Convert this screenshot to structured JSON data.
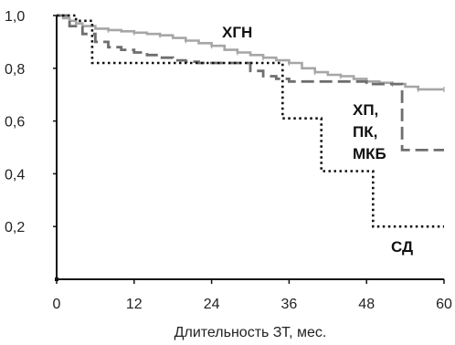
{
  "chart_data": {
    "type": "line",
    "title": "",
    "xlabel": "Длительность ЗТ, мес.",
    "ylabel": "",
    "xlim": [
      0,
      60
    ],
    "ylim": [
      0,
      1
    ],
    "xticks": [
      "0",
      "12",
      "24",
      "36",
      "48",
      "60"
    ],
    "yticks": [
      "0,2",
      "0,4",
      "0,6",
      "0,8",
      "1,0"
    ],
    "grid": false,
    "step": true,
    "series": [
      {
        "name": "ХГН",
        "label_lines": [
          "ХГН"
        ],
        "color": "#a6a6a6",
        "dash": "solid",
        "x": [
          0,
          1,
          2,
          3,
          4,
          6,
          8,
          10,
          12,
          14,
          16,
          18,
          20,
          22,
          24,
          26,
          28,
          30,
          32,
          34,
          36,
          38,
          40,
          42,
          44,
          46,
          48,
          50,
          52,
          54,
          56,
          58,
          60
        ],
        "y": [
          1.0,
          0.99,
          0.98,
          0.97,
          0.96,
          0.95,
          0.945,
          0.94,
          0.935,
          0.93,
          0.925,
          0.915,
          0.905,
          0.895,
          0.885,
          0.87,
          0.86,
          0.85,
          0.84,
          0.83,
          0.82,
          0.8,
          0.785,
          0.775,
          0.77,
          0.76,
          0.75,
          0.745,
          0.74,
          0.73,
          0.72,
          0.72,
          0.72
        ]
      },
      {
        "name": "ХП, ПК, МКБ",
        "label_lines": [
          "ХП,",
          "ПК,",
          "МКБ"
        ],
        "color": "#6e6e6e",
        "dash": "long",
        "x": [
          0,
          2,
          4,
          6,
          8,
          10,
          12,
          14,
          16,
          18,
          20,
          22,
          24,
          30,
          32,
          34,
          36,
          40,
          44,
          48,
          50,
          52,
          53.5,
          60
        ],
        "y": [
          1.0,
          0.96,
          0.93,
          0.9,
          0.88,
          0.87,
          0.86,
          0.85,
          0.84,
          0.83,
          0.825,
          0.82,
          0.82,
          0.79,
          0.77,
          0.76,
          0.75,
          0.75,
          0.75,
          0.74,
          0.74,
          0.74,
          0.49,
          0.49
        ]
      },
      {
        "name": "СД",
        "label_lines": [
          "СД"
        ],
        "color": "#111111",
        "dash": "dotted",
        "x": [
          0,
          3,
          5.5,
          35,
          41,
          49,
          60
        ],
        "y": [
          1.0,
          0.98,
          0.82,
          0.61,
          0.41,
          0.2,
          0.2
        ]
      }
    ]
  }
}
